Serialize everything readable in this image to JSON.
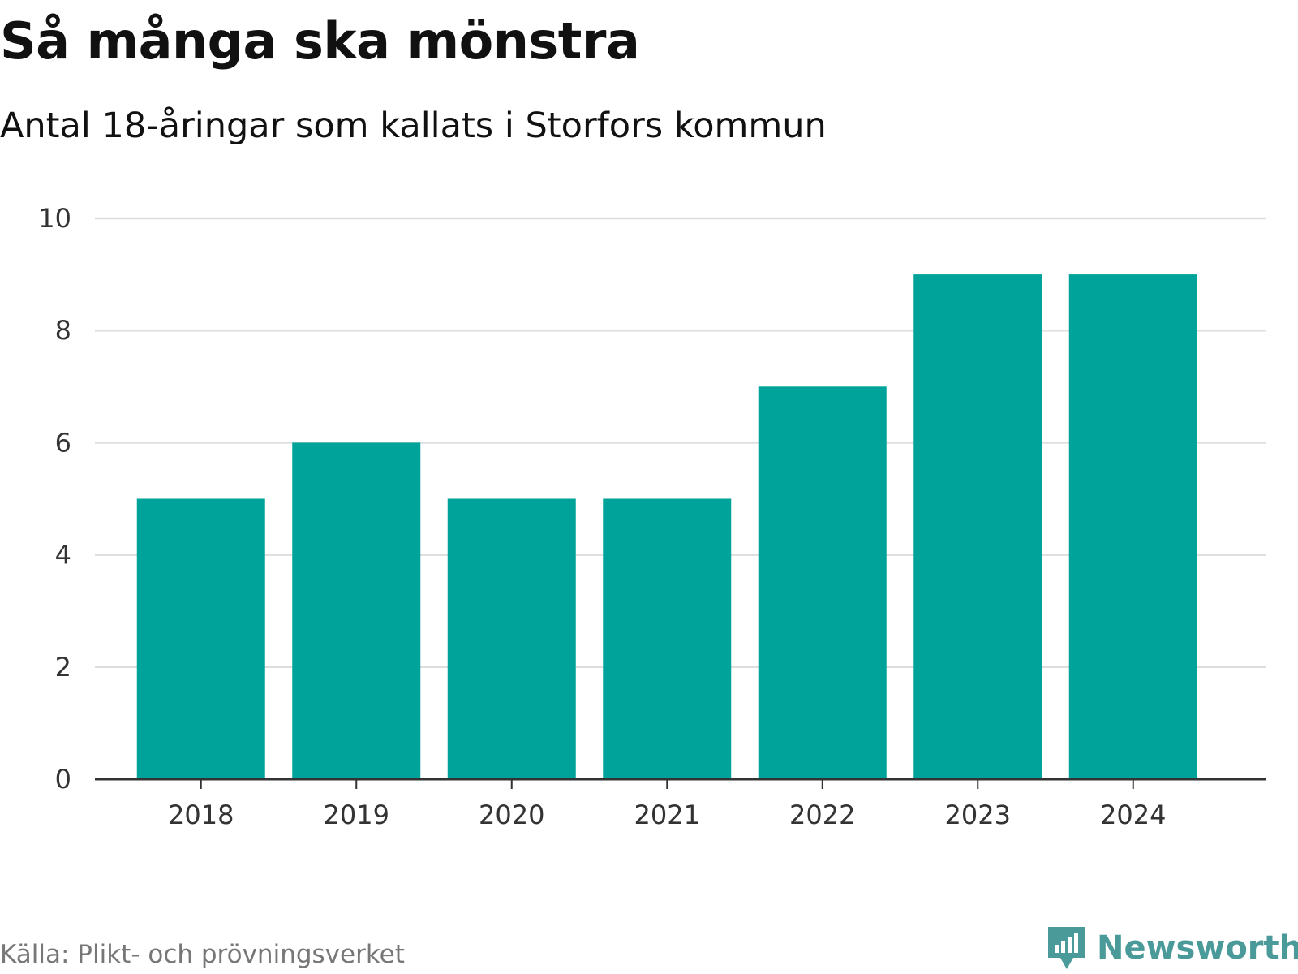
{
  "chart_data": {
    "type": "bar",
    "title": "Så många ska mönstra",
    "subtitle": "Antal 18-åringar som kallats i Storfors kommun",
    "categories": [
      "2018",
      "2019",
      "2020",
      "2021",
      "2022",
      "2023",
      "2024"
    ],
    "values": [
      5,
      6,
      5,
      5,
      7,
      9,
      9
    ],
    "xlabel": "",
    "ylabel": "",
    "ylim": [
      0,
      10
    ],
    "yticks": [
      "0",
      "2",
      "4",
      "6",
      "8",
      "10"
    ],
    "grid": true,
    "bar_color": "#00a39a",
    "source": "Källa: Plikt- och prövningsverket"
  },
  "branding": {
    "name": "Newsworthy",
    "icon": "newsworthy-logo-icon",
    "color": "#4a9a9a"
  }
}
